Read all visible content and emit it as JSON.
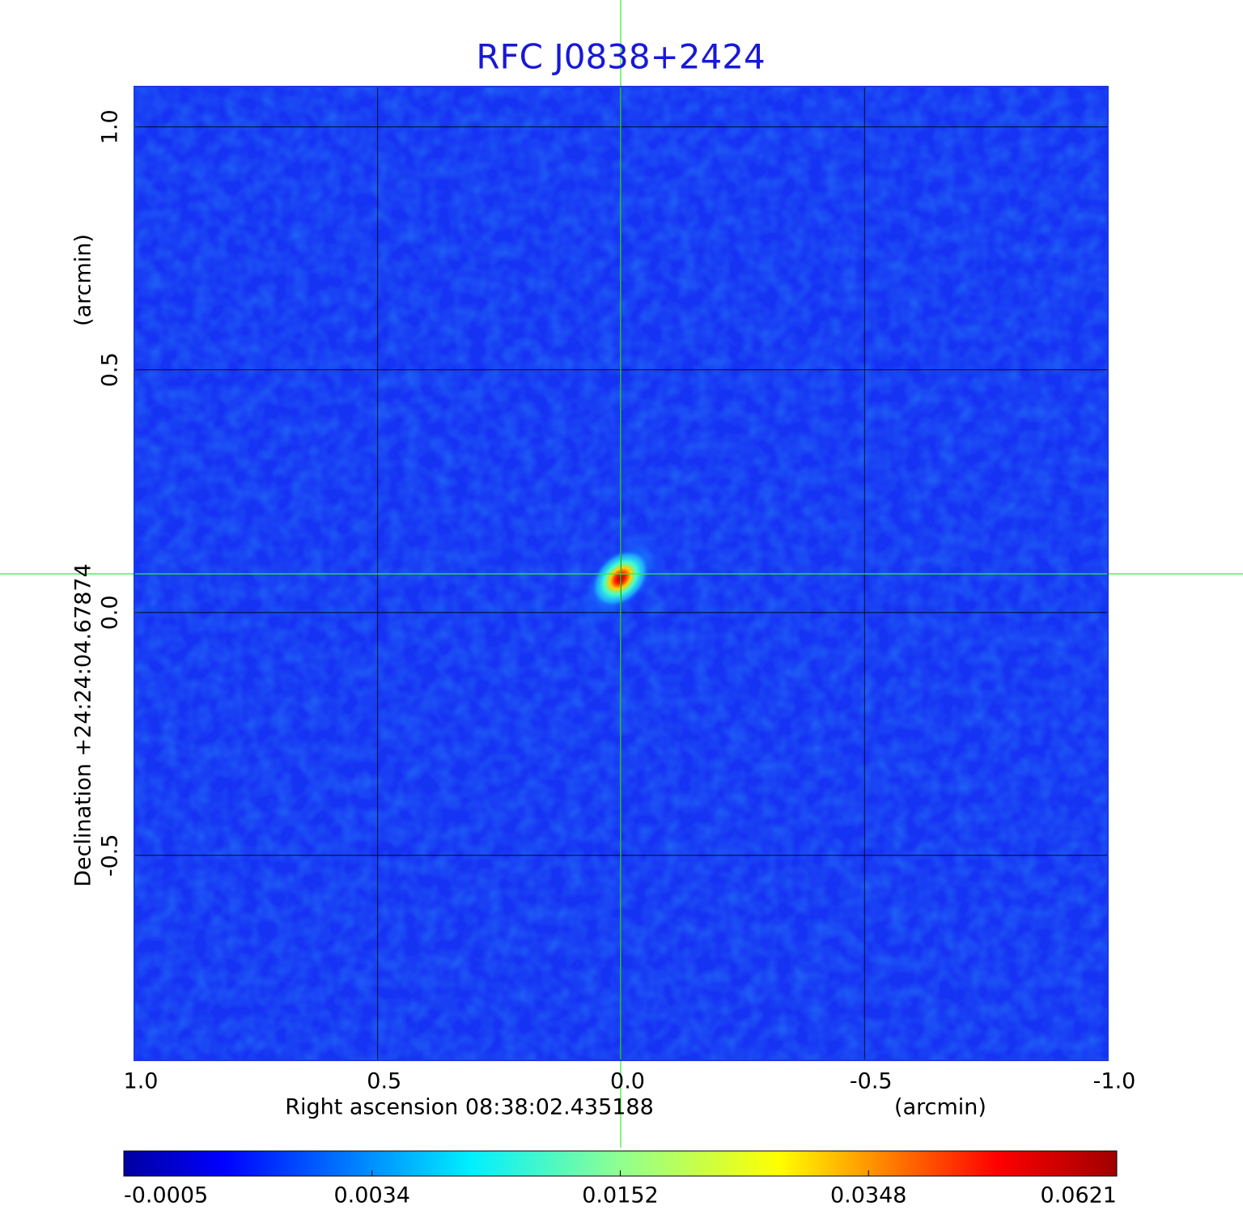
{
  "chart_data": {
    "type": "image",
    "title": "RFC J0838+2424",
    "x_label": "Right ascension  08:38:02.435188",
    "x_unit": "(arcmin)",
    "y_label": "Declination  +24:24:04.67874",
    "y_unit": "(arcmin)",
    "xlim": [
      1.0,
      -1.0
    ],
    "xticks": [
      {
        "value": 1,
        "label": "1.0"
      },
      0.5,
      {
        "value": 0,
        "label": "0.0"
      },
      -0.5,
      {
        "value": -1,
        "label": "-1.0"
      }
    ],
    "ylim": [
      -0.922,
      1.083
    ],
    "yticks": [
      {
        "value": 1,
        "label": "1.0"
      },
      0.5,
      {
        "value": 0,
        "label": "0.0"
      },
      -0.5
    ],
    "grid": true,
    "colorbar_ticks": [
      -0.0005,
      0.0034,
      0.0152,
      0.0348,
      0.0621
    ]
  }
}
